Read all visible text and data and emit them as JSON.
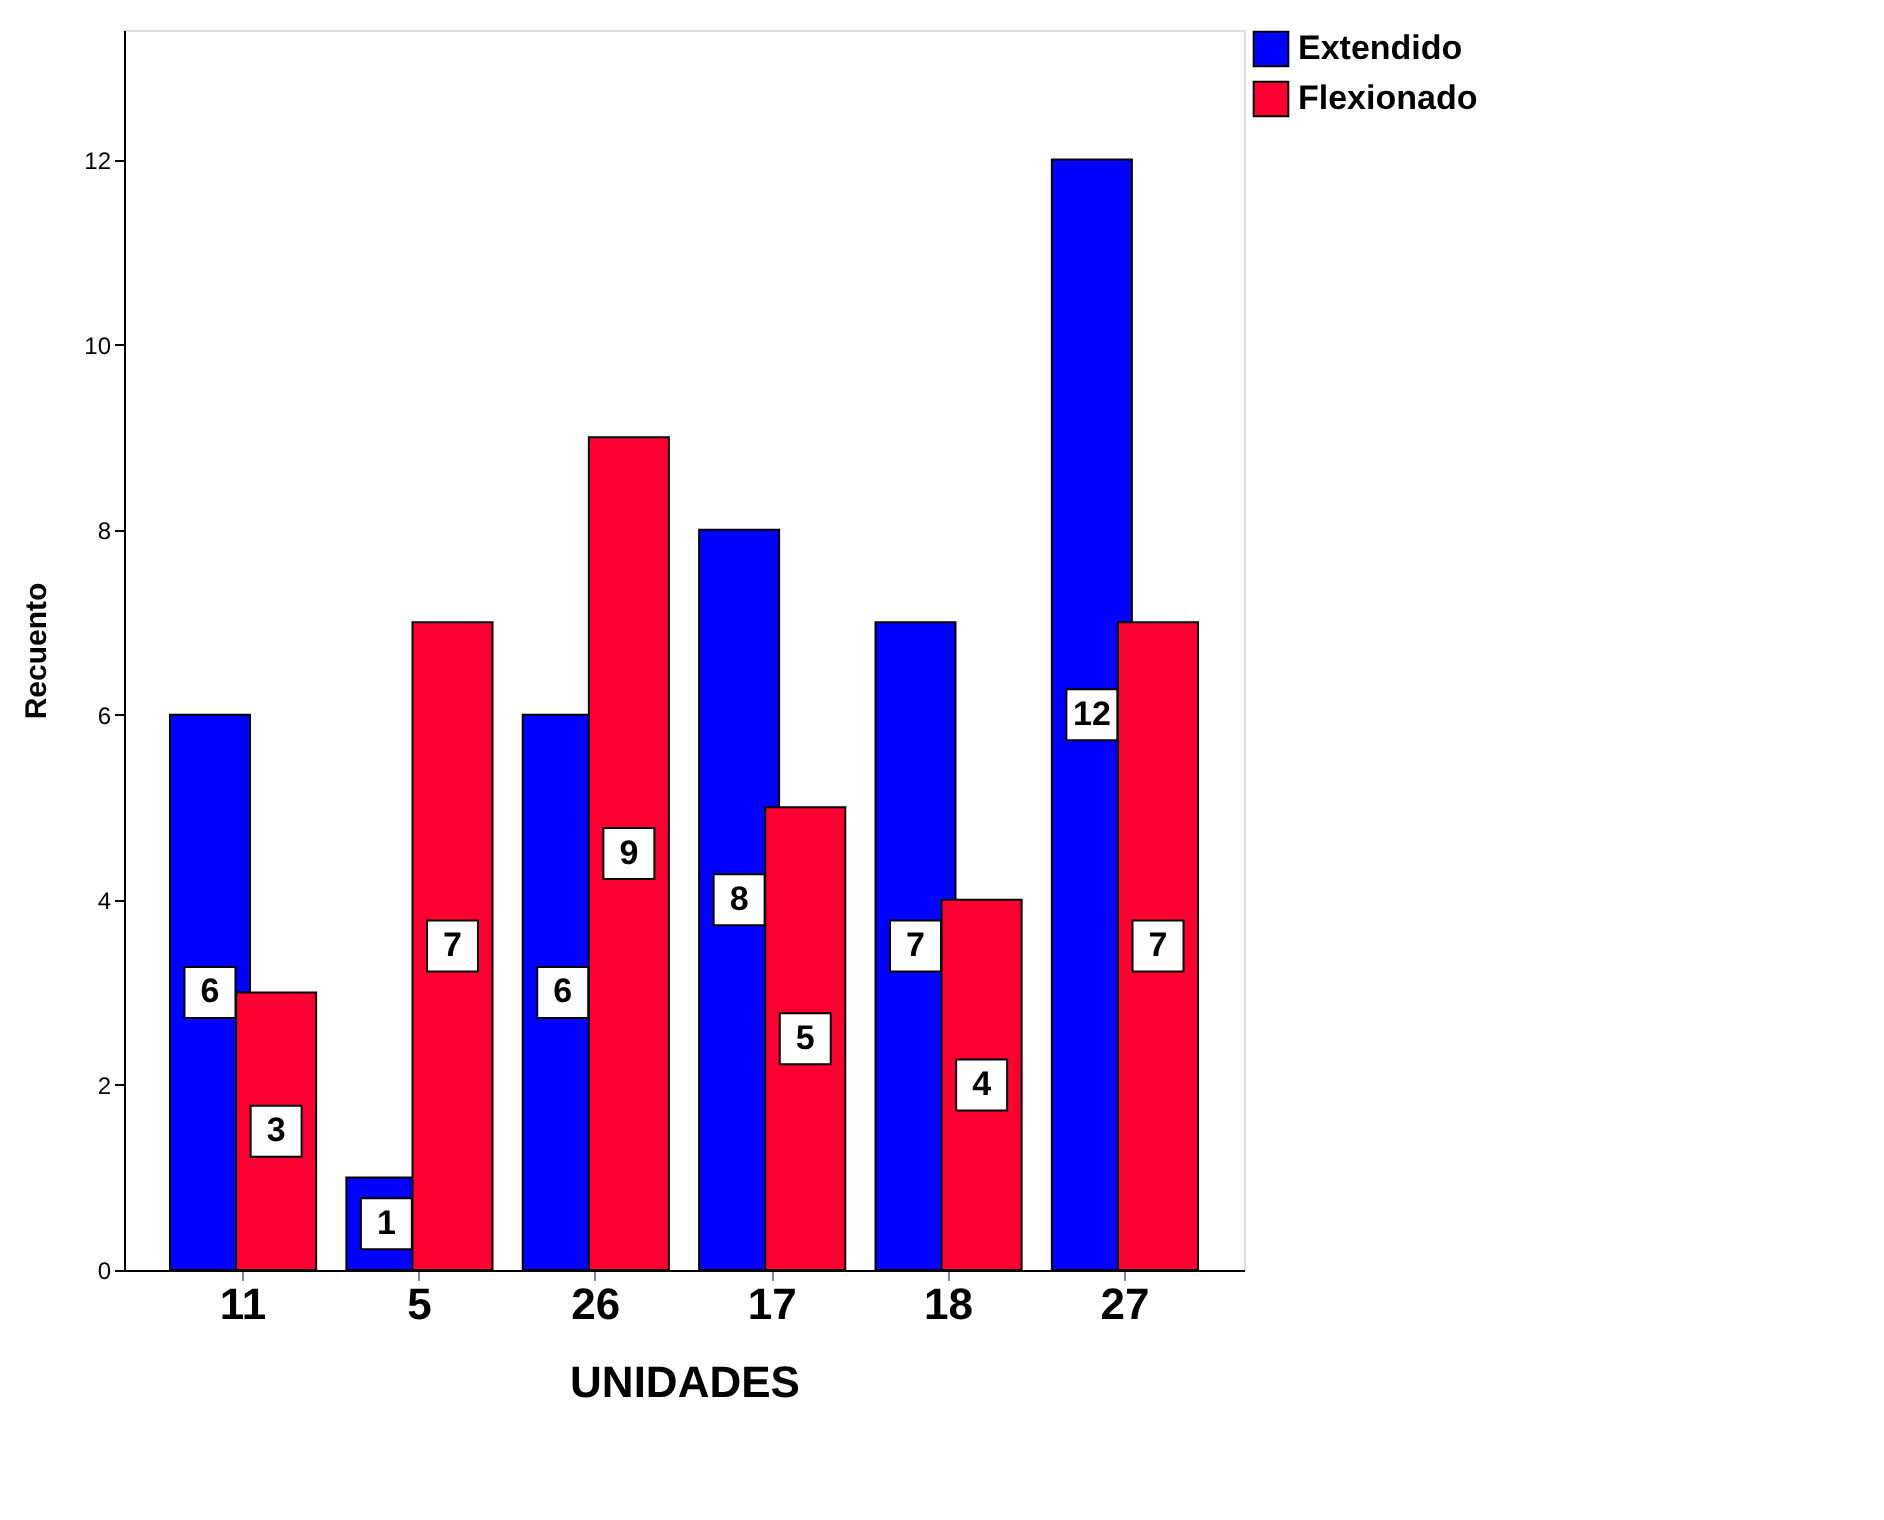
{
  "chart_data": {
    "type": "bar",
    "xlabel": "UNIDADES",
    "ylabel": "Recuento",
    "categories": [
      "11",
      "5",
      "26",
      "17",
      "18",
      "27"
    ],
    "series": [
      {
        "name": "Extendido",
        "color": "#0000ff",
        "values": [
          6,
          1,
          6,
          8,
          7,
          12
        ]
      },
      {
        "name": "Flexionado",
        "color": "#ff0033",
        "values": [
          3,
          7,
          9,
          5,
          4,
          7
        ]
      }
    ],
    "ylim": [
      0,
      13.4
    ],
    "yticks": [
      0,
      2,
      4,
      6,
      8,
      10,
      12
    ],
    "grid": false,
    "legend": "top right",
    "data_labels": true
  }
}
